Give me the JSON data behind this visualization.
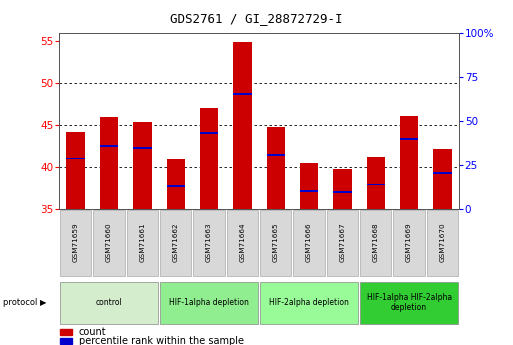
{
  "title": "GDS2761 / GI_28872729-I",
  "samples": [
    "GSM71659",
    "GSM71660",
    "GSM71661",
    "GSM71662",
    "GSM71663",
    "GSM71664",
    "GSM71665",
    "GSM71666",
    "GSM71667",
    "GSM71668",
    "GSM71669",
    "GSM71670"
  ],
  "bar_heights": [
    44.2,
    45.9,
    45.4,
    40.9,
    47.0,
    54.9,
    44.8,
    40.4,
    39.8,
    41.2,
    46.1,
    42.1
  ],
  "blue_positions": [
    41.0,
    42.5,
    42.2,
    37.7,
    44.0,
    48.7,
    41.4,
    37.1,
    37.0,
    37.9,
    43.3,
    39.3
  ],
  "bar_bottom": 35,
  "ylim_left": [
    35,
    56
  ],
  "yticks_left": [
    35,
    40,
    45,
    50,
    55
  ],
  "ylim_right": [
    0,
    100
  ],
  "yticks_right": [
    0,
    25,
    50,
    75,
    100
  ],
  "bar_color": "#cc0000",
  "blue_color": "#0000cc",
  "bar_width": 0.55,
  "protocol_groups": [
    {
      "label": "control",
      "start": 0,
      "end": 2,
      "color": "#d4edcc"
    },
    {
      "label": "HIF-1alpha depletion",
      "start": 3,
      "end": 5,
      "color": "#90ee90"
    },
    {
      "label": "HIF-2alpha depletion",
      "start": 6,
      "end": 8,
      "color": "#98fb98"
    },
    {
      "label": "HIF-1alpha HIF-2alpha\ndepletion",
      "start": 9,
      "end": 11,
      "color": "#32cd32"
    }
  ],
  "background_plot": "#ffffff",
  "tick_label_bg": "#d3d3d3",
  "figsize": [
    5.13,
    3.45
  ],
  "dpi": 100
}
